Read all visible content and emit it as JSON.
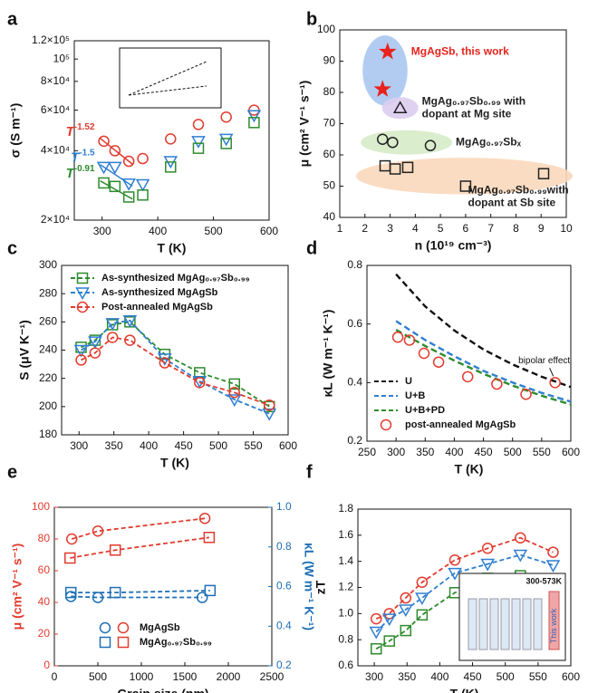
{
  "chart_data": [
    {
      "type": "scatter",
      "panel": "a",
      "xlabel": "T (K)",
      "ylabel": "σ (S m⁻¹)",
      "xlim": [
        250,
        600
      ],
      "xticks": [
        300,
        400,
        500,
        600
      ],
      "ylim": [
        20000,
        120000
      ],
      "ylog": true,
      "yticks": [
        {
          "value": 20000,
          "label": "2×10⁴"
        },
        {
          "value": 40000,
          "label": "4×10⁴"
        },
        {
          "value": 60000,
          "label": "6×10⁴"
        },
        {
          "value": 80000,
          "label": "8×10⁴"
        },
        {
          "value": 100000,
          "label": "10⁵"
        },
        {
          "value": 120000,
          "label": "1.2×10⁵"
        }
      ],
      "x": [
        303,
        323,
        348,
        373,
        423,
        473,
        523,
        573
      ],
      "series": [
        {
          "color": "#e23b2e",
          "marker": "circle",
          "values": [
            44000,
            40000,
            36000,
            37000,
            45000,
            52000,
            56000,
            60000
          ],
          "fit_label": {
            "base": "T",
            "exp": "-1.52"
          }
        },
        {
          "color": "#2f7fd1",
          "marker": "tri-down",
          "values": [
            34000,
            34000,
            28800,
            28600,
            36000,
            44000,
            45000,
            57000
          ],
          "fit_label": {
            "base": "T",
            "exp": "-1.5"
          }
        },
        {
          "color": "#2e8b2e",
          "marker": "square",
          "values": [
            29000,
            28000,
            25200,
            25700,
            34000,
            41000,
            43000,
            53000
          ],
          "fit_label": {
            "base": "T",
            "exp": "-0.91"
          }
        }
      ]
    },
    {
      "type": "scatter",
      "panel": "b",
      "xlabel": "n (10¹⁹ cm⁻³)",
      "ylabel": "μ (cm² V⁻¹ s⁻¹)",
      "xlim": [
        1,
        10
      ],
      "xticks": [
        1,
        2,
        3,
        4,
        5,
        6,
        7,
        8,
        9,
        10
      ],
      "ylim": [
        40,
        100
      ],
      "yticks": [
        40,
        50,
        60,
        70,
        80,
        90,
        100
      ],
      "series": [
        {
          "name": [
            "MgAgSb, this work"
          ],
          "color": "#e8231d",
          "marker": "star",
          "filled": true,
          "region": "#aac6ef",
          "x": [
            2.9,
            2.7
          ],
          "values": [
            93,
            81
          ]
        },
        {
          "name": [
            "MgAg₀.₉₇Sb₀.₉₉ with",
            "dopant at Mg site"
          ],
          "color": "#222222",
          "marker": "tri-up",
          "region": "#dccdf0",
          "x": [
            3.4
          ],
          "values": [
            75
          ]
        },
        {
          "name": [
            "MgAg₀.₉₇Sbₓ"
          ],
          "color": "#222222",
          "marker": "circle",
          "region": "#d6ebc8",
          "x": [
            2.7,
            3.1,
            4.6
          ],
          "values": [
            65,
            64,
            63
          ]
        },
        {
          "name": [
            "MgAg₀.₉₇Sb₀.₉₉with",
            "dopant at Sb site"
          ],
          "color": "#222222",
          "marker": "square",
          "region": "#fad8bb",
          "x": [
            2.8,
            3.2,
            3.7,
            6.0,
            9.1
          ],
          "values": [
            56.5,
            55.5,
            56,
            50,
            54
          ]
        }
      ]
    },
    {
      "type": "line",
      "panel": "c",
      "xlabel": "T (K)",
      "ylabel": "S (μV K⁻¹)",
      "xlim": [
        275,
        600
      ],
      "xticks": [
        300,
        350,
        400,
        450,
        500,
        550,
        600
      ],
      "ylim": [
        180,
        300
      ],
      "yticks": [
        180,
        200,
        220,
        240,
        260,
        280,
        300
      ],
      "legend": "upper left",
      "x": [
        303,
        323,
        348,
        373,
        423,
        473,
        523,
        573
      ],
      "series": [
        {
          "name": "As-synthesized MgAg₀.₉₇Sb₀.₉₉",
          "color": "#2e8b2e",
          "marker": "square",
          "line": "dashed",
          "values": [
            242,
            247,
            258,
            260,
            237,
            224,
            216,
            200
          ]
        },
        {
          "name": "As-synthesized MgAgSb",
          "color": "#2f7fd1",
          "marker": "tri-down",
          "line": "dashed",
          "values": [
            240,
            246,
            259,
            261,
            234,
            218,
            205,
            195
          ]
        },
        {
          "name": "Post-annealed MgAgSb",
          "color": "#e23b2e",
          "marker": "circle",
          "line": "dashed",
          "values": [
            233,
            238,
            249,
            247,
            231,
            217,
            210,
            201
          ]
        }
      ]
    },
    {
      "type": "line",
      "panel": "d",
      "xlabel": "T (K)",
      "ylabel": "κL (W m⁻¹ K⁻¹)",
      "xlim": [
        250,
        600
      ],
      "xticks": [
        250,
        300,
        350,
        400,
        450,
        500,
        550,
        600
      ],
      "ylim": [
        0.2,
        0.8
      ],
      "yticks": [
        0.2,
        0.4,
        0.6,
        0.8
      ],
      "legend": "lower left",
      "x": [
        303,
        323,
        348,
        373,
        423,
        473,
        523,
        573
      ],
      "series": [
        {
          "name": "U",
          "color": "#111111",
          "line": "dashed",
          "x": [
            300,
            350,
            400,
            450,
            500,
            550,
            600
          ],
          "values": [
            0.77,
            0.66,
            0.578,
            0.513,
            0.462,
            0.42,
            0.385
          ]
        },
        {
          "name": "U+B",
          "color": "#2f7fd1",
          "line": "dashed",
          "x": [
            300,
            350,
            400,
            450,
            500,
            550,
            600
          ],
          "values": [
            0.61,
            0.545,
            0.49,
            0.44,
            0.4,
            0.365,
            0.335
          ]
        },
        {
          "name": "U+B+PD",
          "color": "#2e8b2e",
          "line": "dashed",
          "x": [
            300,
            350,
            400,
            450,
            500,
            550,
            600
          ],
          "values": [
            0.58,
            0.525,
            0.475,
            0.43,
            0.39,
            0.355,
            0.325
          ]
        },
        {
          "name": "post-annealed MgAgSb",
          "color": "#e23b2e",
          "marker": "circle",
          "values": [
            0.555,
            0.545,
            0.5,
            0.47,
            0.42,
            0.395,
            0.36,
            0.4
          ],
          "annotation": "bipolar effect"
        }
      ]
    },
    {
      "type": "scatter",
      "panel": "e",
      "xlabel": "Grain size (nm)",
      "ylabel": "μ (cm² V⁻¹ s⁻¹)",
      "y2label": "κL (W m⁻¹ K⁻¹)",
      "xlim": [
        0,
        2500
      ],
      "xticks": [
        0,
        500,
        1000,
        1500,
        2000,
        2500
      ],
      "ylim": [
        0,
        100
      ],
      "yticks": [
        0,
        20,
        40,
        60,
        80,
        100
      ],
      "ycolor": "#e23b2e",
      "y2lim": [
        0.2,
        1.0
      ],
      "y2ticks": [
        0.2,
        0.4,
        0.6,
        0.8,
        {
          "value": 1.0,
          "label": "1.0"
        }
      ],
      "y2color": "#1f6fb5",
      "legend": "lower center",
      "series": [
        {
          "name": "MgAgSb",
          "color": "#e23b2e",
          "marker": "circle",
          "line": "dashed",
          "x": [
            200,
            500,
            1730
          ],
          "values": [
            80,
            85,
            93
          ]
        },
        {
          "name": "MgAg₀.₉₇Sb₀.₉₉",
          "color": "#e23b2e",
          "marker": "square",
          "line": "dashed",
          "x": [
            180,
            700,
            1780
          ],
          "values": [
            68,
            73,
            81
          ]
        },
        {
          "color": "#1f6fb5",
          "marker": "circle",
          "line": "dashed",
          "axis": "y2",
          "x": [
            190,
            500,
            1700
          ],
          "values": [
            0.55,
            0.545,
            0.545
          ]
        },
        {
          "color": "#1f6fb5",
          "marker": "square",
          "line": "dashed",
          "axis": "y2",
          "x": [
            190,
            700,
            1790
          ],
          "values": [
            0.57,
            0.57,
            0.58
          ]
        }
      ]
    },
    {
      "type": "line",
      "panel": "f",
      "xlabel": "T (K)",
      "ylabel": "zT",
      "xlim": [
        275,
        600
      ],
      "xticks": [
        300,
        350,
        400,
        450,
        500,
        550,
        600
      ],
      "ylim": [
        0.6,
        1.8
      ],
      "yticks": [
        0.6,
        0.8,
        {
          "value": 1.0,
          "label": "1.0"
        },
        1.2,
        1.4,
        1.6,
        1.8
      ],
      "x": [
        303,
        323,
        348,
        373,
        423,
        473,
        523,
        573
      ],
      "inset_title": "300-573K",
      "inset_note": "This work",
      "series": [
        {
          "color": "#e23b2e",
          "marker": "circle",
          "line": "dashed",
          "values": [
            0.96,
            1.0,
            1.12,
            1.24,
            1.41,
            1.5,
            1.58,
            1.47
          ]
        },
        {
          "color": "#2f7fd1",
          "marker": "tri-down",
          "line": "dashed",
          "values": [
            0.86,
            0.96,
            1.03,
            1.12,
            1.31,
            1.38,
            1.45,
            1.37
          ]
        },
        {
          "color": "#2e8b2e",
          "marker": "square",
          "line": "dashed",
          "values": [
            0.73,
            0.79,
            0.87,
            0.99,
            1.16,
            1.27,
            1.29,
            1.26
          ]
        }
      ]
    }
  ]
}
